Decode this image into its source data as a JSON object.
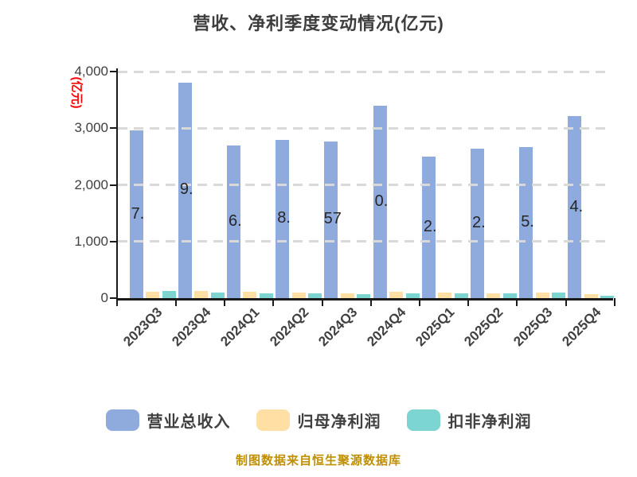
{
  "title": "营收、净利季度变动情况(亿元)",
  "footer": "制图数据来自恒生聚源数据库",
  "y_axis": {
    "unit_label": "(亿元)",
    "unit_label_color": "#ff0000",
    "ticks": [
      {
        "label": "0",
        "value": 0
      },
      {
        "label": "1,000",
        "value": 1000
      },
      {
        "label": "2,000",
        "value": 2000
      },
      {
        "label": "3,000",
        "value": 3000
      },
      {
        "label": "4,000",
        "value": 4000
      }
    ]
  },
  "chart_data": {
    "type": "bar",
    "title": "营收、净利季度变动情况(亿元)",
    "xlabel": "",
    "ylabel": "(亿元)",
    "ylim": [
      0,
      4000
    ],
    "grid": "horizontal dashed",
    "legend_position": "bottom",
    "categories": [
      "2023Q3",
      "2023Q4",
      "2024Q1",
      "2024Q2",
      "2024Q3",
      "2024Q4",
      "2025Q1",
      "2025Q2",
      "2025Q3",
      "2025Q4"
    ],
    "series": [
      {
        "key": "total-revenue",
        "name": "营业总收入",
        "color": "#8FAADC",
        "values": [
          2960,
          3810,
          2690,
          2800,
          2770,
          3400,
          2500,
          2645,
          2660,
          3210
        ]
      },
      {
        "key": "net-profit-attributable",
        "name": "归母净利润",
        "color": "#FFDFA3",
        "values": [
          115,
          125,
          110,
          100,
          80,
          115,
          95,
          85,
          100,
          75
        ]
      },
      {
        "key": "non-gaap-net-profit",
        "name": "扣非净利润",
        "color": "#7CD5D1",
        "values": [
          125,
          100,
          90,
          85,
          75,
          90,
          80,
          85,
          95,
          45
        ]
      }
    ],
    "bar_labels_visible": [
      "7.",
      "9.",
      "6.",
      "8.",
      "57",
      "0.",
      "2.",
      "2.",
      "5.",
      "4."
    ]
  }
}
